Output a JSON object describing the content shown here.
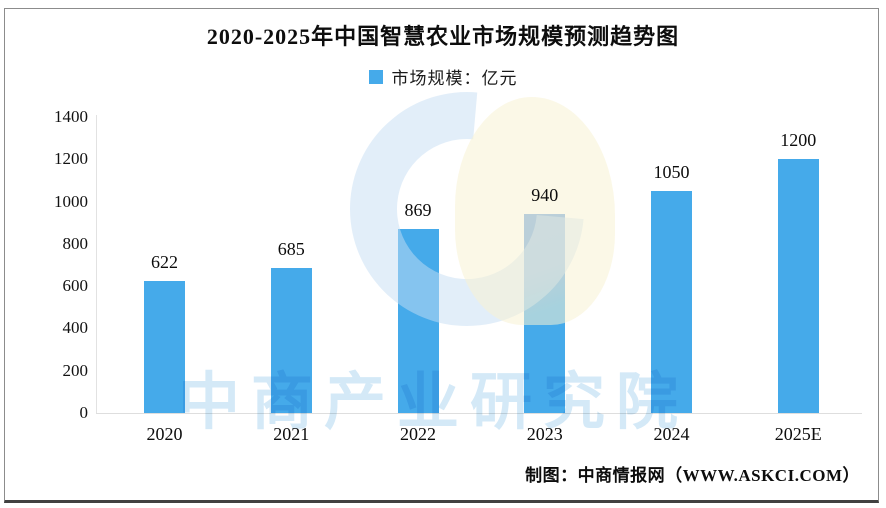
{
  "title": "2020-2025年中国智慧农业市场规模预测趋势图",
  "legend": {
    "label": "市场规模：亿元",
    "swatch_color": "#45AAEA"
  },
  "chart_data": {
    "type": "bar",
    "title": "2020-2025年中国智慧农业市场规模预测趋势图",
    "categories": [
      "2020",
      "2021",
      "2022",
      "2023",
      "2024",
      "2025E"
    ],
    "values": [
      622,
      685,
      869,
      940,
      1050,
      1200
    ],
    "series_name": "市场规模",
    "unit": "亿元",
    "ylim": [
      0,
      1400
    ],
    "ytick_step": 200,
    "ytick_labels": [
      "0",
      "200",
      "400",
      "600",
      "800",
      "1000",
      "1200",
      "1400"
    ],
    "bar_color": "#45AAEA",
    "grid": false,
    "legend_position": "top",
    "data_labels_shown": true
  },
  "watermark": {
    "text": "中商产业研究院"
  },
  "attribution": {
    "text": "制图：中商情报网（WWW.ASKCI.COM）"
  }
}
